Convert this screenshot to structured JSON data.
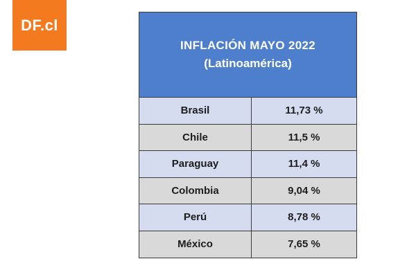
{
  "logo": {
    "text": "DF.cl",
    "color": "#f47a1f"
  },
  "chart_data": {
    "type": "table",
    "title": "INFLACIÓN MAYO 2022",
    "subtitle": "(Latinoamérica)",
    "columns": [],
    "rows": [
      {
        "country": "Brasil",
        "value": "11,73 %"
      },
      {
        "country": "Chile",
        "value": "11,5 %"
      },
      {
        "country": "Paraguay",
        "value": "11,4 %"
      },
      {
        "country": "Colombia",
        "value": "9,04 %"
      },
      {
        "country": "Perú",
        "value": "8,78 %"
      },
      {
        "country": "México",
        "value": "7,65 %"
      }
    ]
  },
  "colors": {
    "header": "#4e7fcd",
    "row_odd": "#d5dcef",
    "row_even": "#d9d9d9"
  }
}
